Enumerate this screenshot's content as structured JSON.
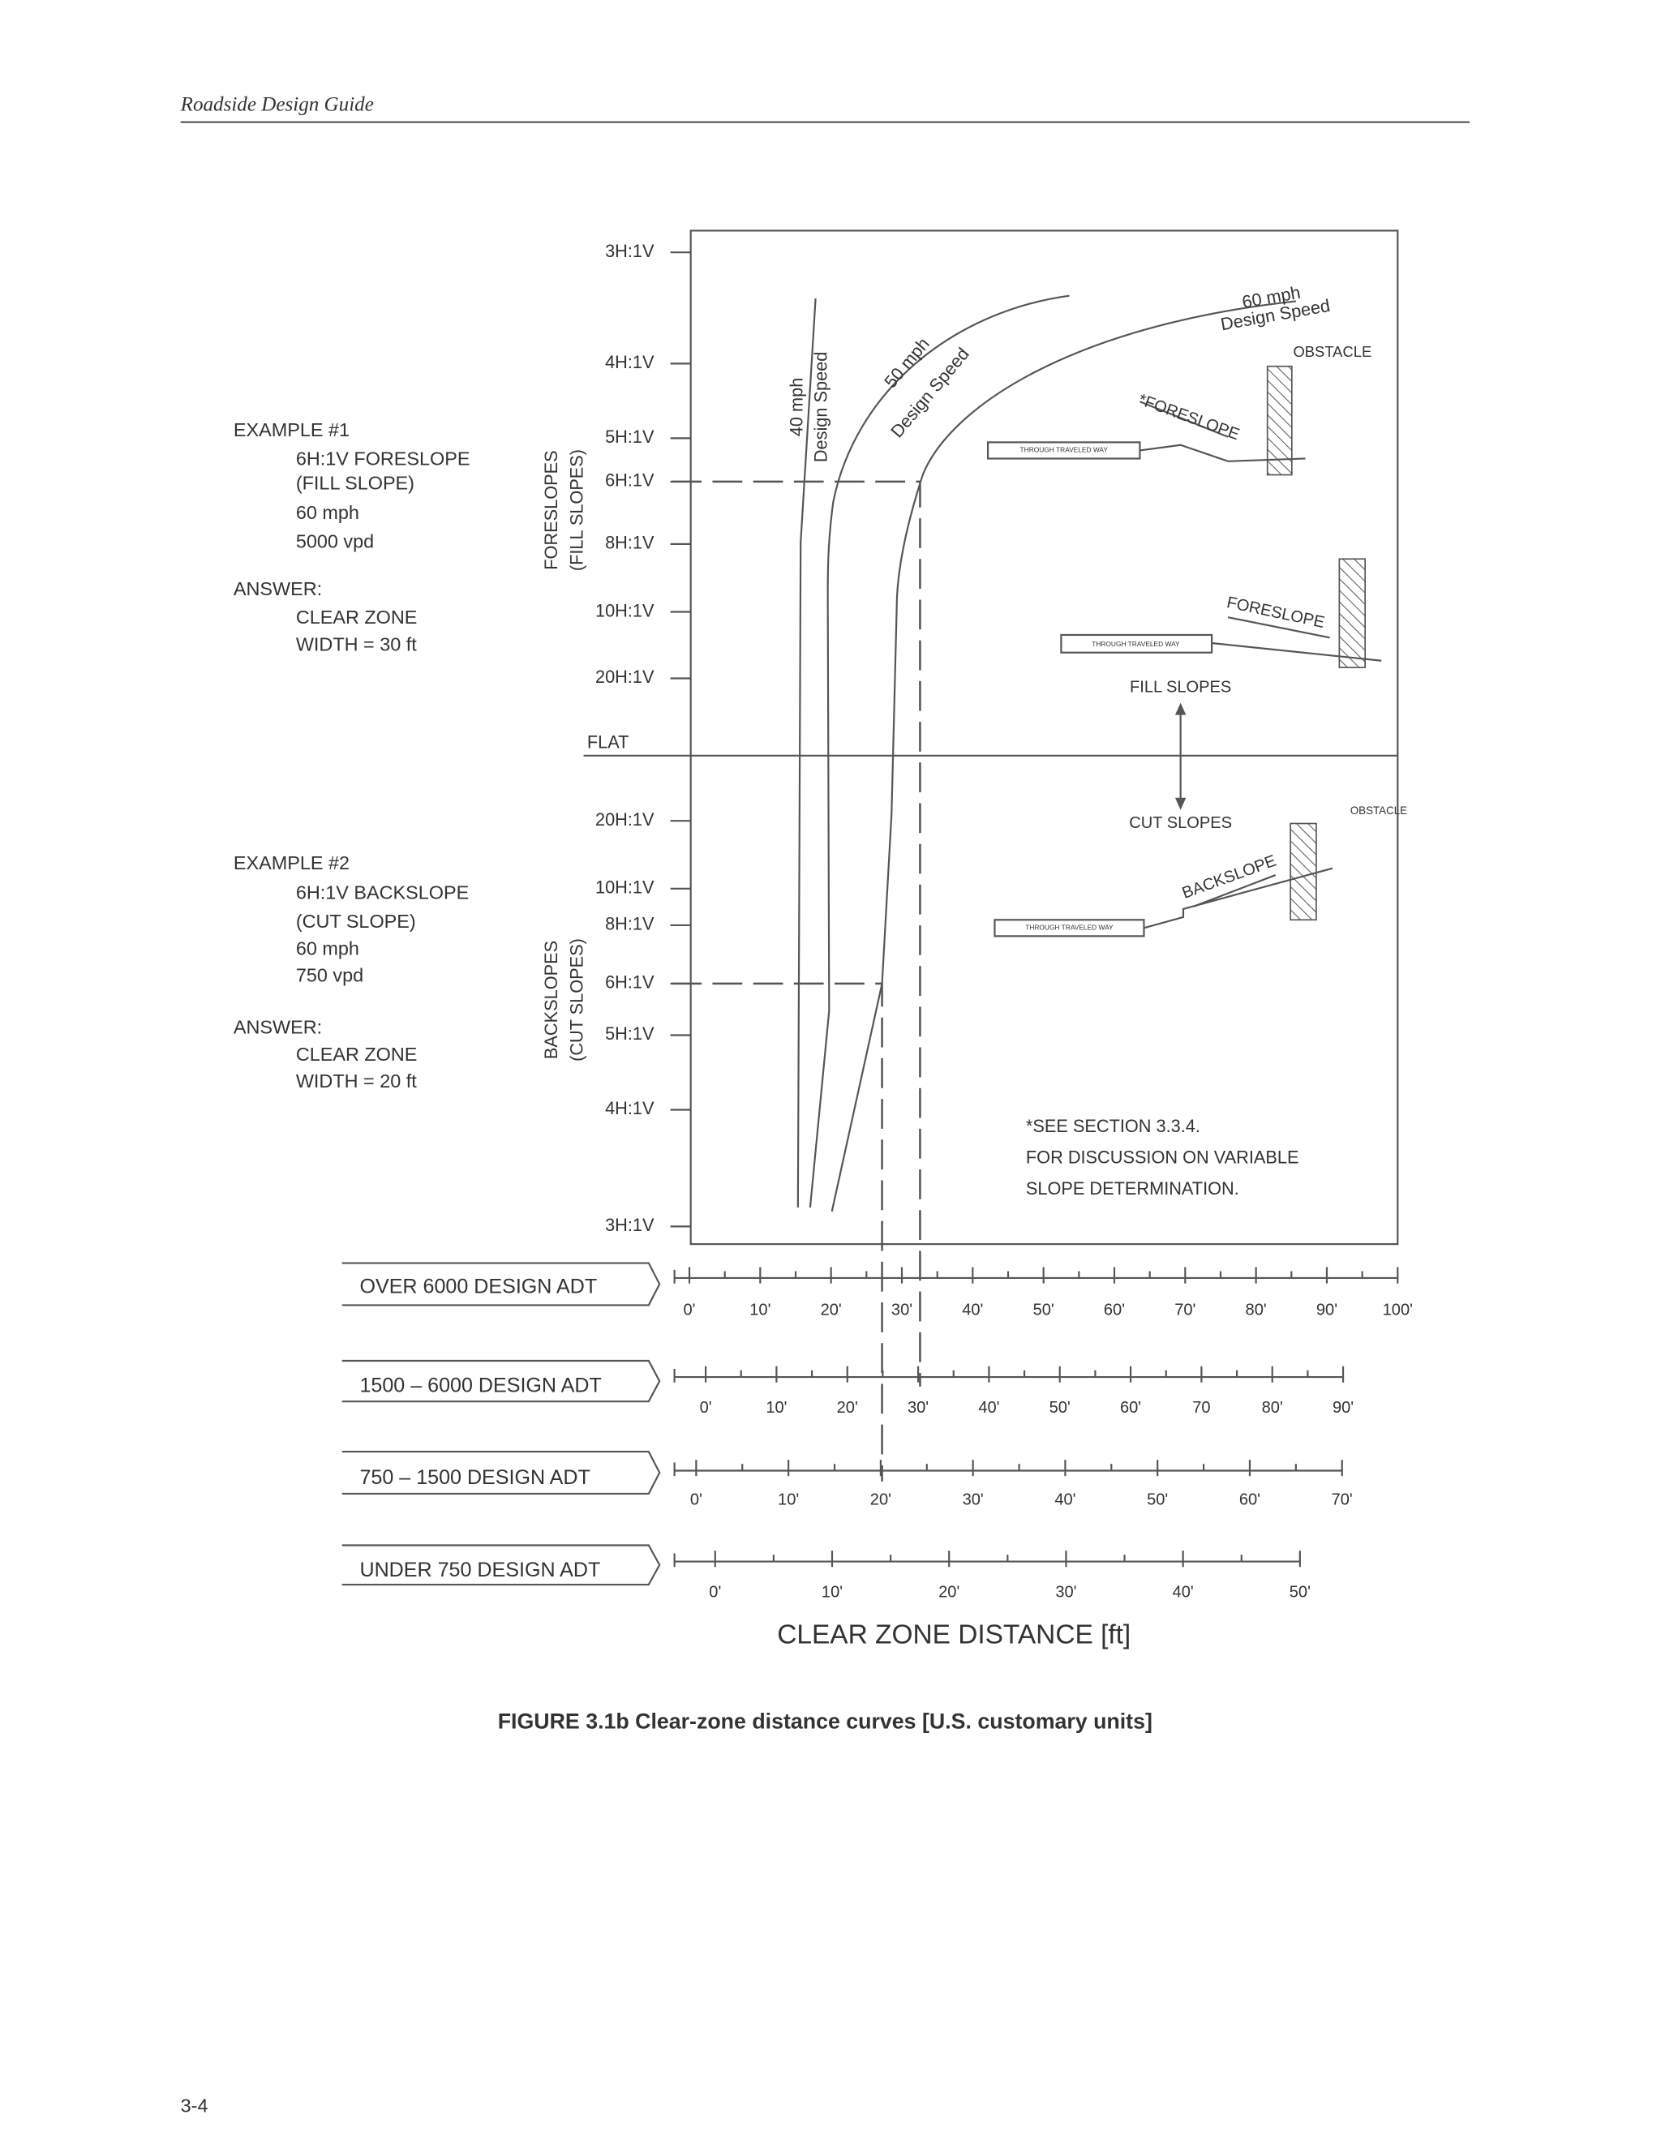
{
  "header": {
    "title": "Roadside Design Guide"
  },
  "figure": {
    "foreslope_axis": [
      "FORESLOPES",
      "(FILL SLOPES)"
    ],
    "foreslope_ticks": [
      "3H:1V",
      "4H:1V",
      "5H:1V",
      "6H:1V",
      "8H:1V",
      "10H:1V",
      "20H:1V"
    ],
    "flat": "FLAT",
    "backslope_axis": [
      "BACKSLOPES",
      "(CUT SLOPES)"
    ],
    "backslope_ticks": [
      "20H:1V",
      "10H:1V",
      "8H:1V",
      "6H:1V",
      "5H:1V",
      "4H:1V",
      "3H:1V"
    ],
    "curves": [
      {
        "speed": "40 mph",
        "label": "Design Speed"
      },
      {
        "speed": "50 mph",
        "label": "Design Speed"
      },
      {
        "speed": "60 mph",
        "label": "Design Speed"
      }
    ],
    "examples": [
      {
        "title": "EXAMPLE #1",
        "details": [
          "6H:1V FORESLOPE",
          "(FILL SLOPE)",
          "60 mph",
          "5000 vpd"
        ],
        "answer": "ANSWER:",
        "result": [
          "CLEAR ZONE",
          "WIDTH = 30 ft"
        ]
      },
      {
        "title": "EXAMPLE #2",
        "details": [
          "6H:1V BACKSLOPE",
          "(CUT SLOPE)",
          "60 mph",
          "750 vpd"
        ],
        "answer": "ANSWER:",
        "result": [
          "CLEAR ZONE",
          "WIDTH = 20 ft"
        ]
      }
    ],
    "insets": [
      {
        "obstacle": "OBSTACLE",
        "slope": "*FORESLOPE",
        "way": "THROUGH TRAVELED WAY"
      },
      {
        "slope": "FORESLOPE",
        "way": "THROUGH TRAVELED WAY"
      },
      {
        "obstacle": "OBSTACLE",
        "slope": "BACKSLOPE",
        "way": "THROUGH TRAVELED WAY"
      }
    ],
    "fill_label": "FILL SLOPES",
    "cut_label": "CUT SLOPES",
    "note": [
      "*SEE SECTION 3.3.4.",
      "FOR DISCUSSION ON VARIABLE",
      "SLOPE DETERMINATION."
    ],
    "scales": [
      {
        "label": "OVER 6000 DESIGN ADT",
        "ticks": [
          "0'",
          "10'",
          "20'",
          "30'",
          "40'",
          "50'",
          "60'",
          "70'",
          "80'",
          "90'",
          "100'"
        ]
      },
      {
        "label": "1500 – 6000 DESIGN ADT",
        "ticks": [
          "0'",
          "10'",
          "20'",
          "30'",
          "40'",
          "50'",
          "60'",
          "70",
          "80'",
          "90'"
        ]
      },
      {
        "label": "750 – 1500 DESIGN ADT",
        "ticks": [
          "0'",
          "10'",
          "20'",
          "30'",
          "40'",
          "50'",
          "60'",
          "70'"
        ]
      },
      {
        "label": "UNDER 750 DESIGN ADT",
        "ticks": [
          "0'",
          "10'",
          "20'",
          "30'",
          "40'",
          "50'"
        ]
      }
    ],
    "x_title": "CLEAR ZONE DISTANCE [ft]"
  },
  "caption": "FIGURE 3.1b  Clear-zone distance curves [U.S. customary units]",
  "page_number": "3-4"
}
